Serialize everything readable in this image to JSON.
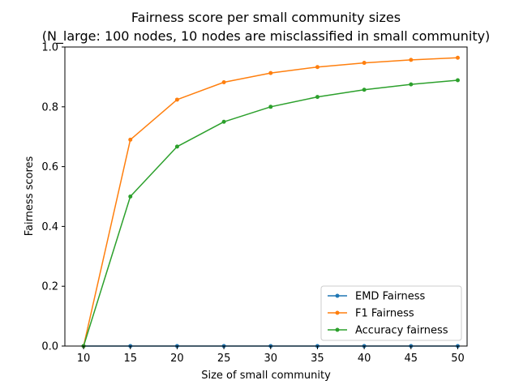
{
  "chart_data": {
    "type": "line",
    "title": "Fairness score per small community sizes",
    "subtitle": "(N_large: 100 nodes, 10 nodes are misclassified in small community)",
    "xlabel": "Size of small community",
    "ylabel": "Fairness scores",
    "x": [
      10,
      15,
      20,
      25,
      30,
      35,
      40,
      45,
      50
    ],
    "xlim": [
      8,
      51
    ],
    "ylim": [
      0,
      1.0
    ],
    "xticks": [
      "10",
      "15",
      "20",
      "25",
      "30",
      "35",
      "40",
      "45",
      "50"
    ],
    "yticks": [
      "0.0",
      "0.2",
      "0.4",
      "0.6",
      "0.8",
      "1.0"
    ],
    "grid": false,
    "legend_position": "lower-right",
    "series": [
      {
        "name": "EMD Fairness",
        "color": "#1f77b4",
        "marker": "dot",
        "values": [
          0,
          0,
          0,
          0,
          0,
          0,
          0,
          0,
          0
        ]
      },
      {
        "name": "F1 Fairness",
        "color": "#ff7f0e",
        "marker": "dot",
        "values": [
          0,
          0.69,
          0.824,
          0.882,
          0.913,
          0.933,
          0.947,
          0.957,
          0.964
        ]
      },
      {
        "name": "Accuracy fairness",
        "color": "#2ca02c",
        "marker": "dot",
        "values": [
          0,
          0.5,
          0.667,
          0.75,
          0.8,
          0.833,
          0.857,
          0.875,
          0.889
        ]
      }
    ]
  }
}
